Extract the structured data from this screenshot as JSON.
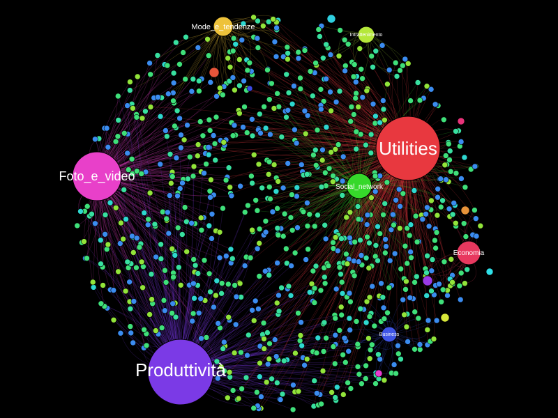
{
  "graph": {
    "background": "#000000",
    "hubs": [
      {
        "id": "utilities",
        "label": "Utilities",
        "color": "#e8383f",
        "size": "xl"
      },
      {
        "id": "produttivita",
        "label": "Produttività",
        "color": "#7b3ae6",
        "size": "xl"
      },
      {
        "id": "foto",
        "label": "Foto_e_video",
        "color": "#e840c9",
        "size": "l"
      },
      {
        "id": "social",
        "label": "Social_network",
        "color": "#36d82a",
        "size": "m"
      },
      {
        "id": "economia",
        "label": "Economia",
        "color": "#e8385f",
        "size": "s"
      },
      {
        "id": "mode",
        "label": "Mode_e_tendenze",
        "color": "#eec23a",
        "size": "s"
      },
      {
        "id": "intrattenimento",
        "label": "Intrattenimento",
        "color": "#b5e83a",
        "size": "xs"
      },
      {
        "id": "business",
        "label": "Business",
        "color": "#3f55e6",
        "size": "xs"
      }
    ],
    "small_node_colors": [
      "#3fe07a",
      "#38e0a0",
      "#3b8cf0",
      "#92e43a",
      "#2ed8d0"
    ],
    "accent_nodes": [
      {
        "id": "a1",
        "color": "#e8553a"
      },
      {
        "id": "a2",
        "color": "#2fd0e0"
      },
      {
        "id": "a3",
        "color": "#e8337a"
      },
      {
        "id": "a4",
        "color": "#e8933a"
      },
      {
        "id": "a5",
        "color": "#2fe0e8"
      },
      {
        "id": "a6",
        "color": "#9a3ae6"
      },
      {
        "id": "a7",
        "color": "#d8e83a"
      },
      {
        "id": "a8",
        "color": "#e83ad0"
      },
      {
        "id": "a9",
        "color": "#3a4ae6"
      }
    ]
  }
}
